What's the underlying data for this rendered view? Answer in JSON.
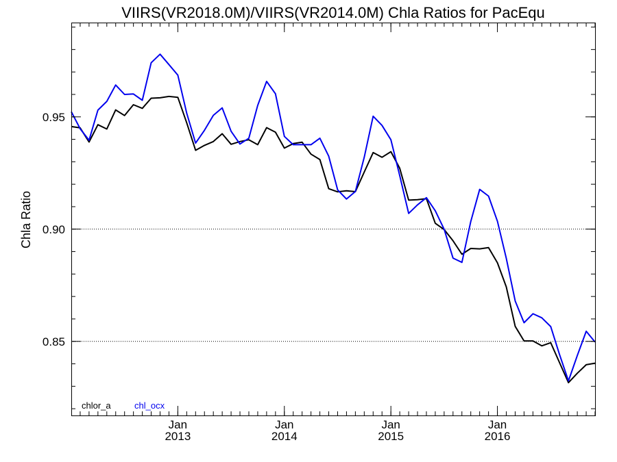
{
  "chart_data": {
    "type": "line",
    "title": "VIIRS(VR2018.0M)/VIIRS(VR2014.0M)  Chla Ratios for PacEqu",
    "xlabel": "",
    "ylabel": "Chla Ratio",
    "xlim": [
      "2012-01",
      "2016-12"
    ],
    "ylim": [
      0.817,
      0.992
    ],
    "y_ticks": [
      0.85,
      0.9,
      0.95
    ],
    "y_tick_labels": [
      "0.85",
      "0.90",
      "0.95"
    ],
    "x_ticks": [
      {
        "month_label": "Jan",
        "year_label": "2013",
        "x": "2013-01"
      },
      {
        "month_label": "Jan",
        "year_label": "2014",
        "x": "2014-01"
      },
      {
        "month_label": "Jan",
        "year_label": "2015",
        "x": "2015-01"
      },
      {
        "month_label": "Jan",
        "year_label": "2016",
        "x": "2016-01"
      }
    ],
    "reference_lines": [
      0.85,
      0.9
    ],
    "grid": false,
    "legend_position": "bottom-left",
    "x": [
      "2012-01",
      "2012-02",
      "2012-03",
      "2012-04",
      "2012-05",
      "2012-06",
      "2012-07",
      "2012-08",
      "2012-09",
      "2012-10",
      "2012-11",
      "2012-12",
      "2013-01",
      "2013-02",
      "2013-03",
      "2013-04",
      "2013-05",
      "2013-06",
      "2013-07",
      "2013-08",
      "2013-09",
      "2013-10",
      "2013-11",
      "2013-12",
      "2014-01",
      "2014-02",
      "2014-03",
      "2014-04",
      "2014-05",
      "2014-06",
      "2014-07",
      "2014-08",
      "2014-09",
      "2014-10",
      "2014-11",
      "2014-12",
      "2015-01",
      "2015-02",
      "2015-03",
      "2015-04",
      "2015-05",
      "2015-06",
      "2015-07",
      "2015-08",
      "2015-09",
      "2015-10",
      "2015-11",
      "2015-12",
      "2016-01",
      "2016-02",
      "2016-03",
      "2016-04",
      "2016-05",
      "2016-06",
      "2016-07",
      "2016-08",
      "2016-09",
      "2016-10",
      "2016-11",
      "2016-12"
    ],
    "series": [
      {
        "name": "chlor_a",
        "color": "#000000",
        "values": [
          0.9457,
          0.9451,
          0.9388,
          0.9465,
          0.9446,
          0.9531,
          0.9506,
          0.9554,
          0.9538,
          0.9583,
          0.9585,
          0.9591,
          0.9587,
          0.9474,
          0.9351,
          0.9373,
          0.939,
          0.9425,
          0.9378,
          0.939,
          0.9398,
          0.9376,
          0.9452,
          0.9432,
          0.9361,
          0.9381,
          0.9387,
          0.9334,
          0.931,
          0.918,
          0.9166,
          0.9171,
          0.9167,
          0.9254,
          0.9341,
          0.932,
          0.9345,
          0.9271,
          0.9129,
          0.9131,
          0.9136,
          0.9026,
          0.8998,
          0.8948,
          0.8888,
          0.8914,
          0.8912,
          0.8918,
          0.885,
          0.8743,
          0.8567,
          0.8502,
          0.8502,
          0.848,
          0.8494,
          0.8405,
          0.8316,
          0.8358,
          0.8396,
          0.8403
        ]
      },
      {
        "name": "chl_ocx",
        "color": "#0000ee",
        "values": [
          0.9523,
          0.9447,
          0.9396,
          0.953,
          0.9569,
          0.9642,
          0.96,
          0.9602,
          0.9574,
          0.9741,
          0.9779,
          0.9733,
          0.9686,
          0.9517,
          0.9383,
          0.944,
          0.9507,
          0.954,
          0.9436,
          0.9379,
          0.9405,
          0.9551,
          0.9658,
          0.9603,
          0.9413,
          0.9376,
          0.9376,
          0.9376,
          0.9405,
          0.9325,
          0.9175,
          0.9134,
          0.9168,
          0.932,
          0.9503,
          0.9462,
          0.9398,
          0.9238,
          0.907,
          0.9108,
          0.914,
          0.9082,
          0.8999,
          0.8871,
          0.8852,
          0.9034,
          0.9177,
          0.9147,
          0.9035,
          0.887,
          0.868,
          0.8583,
          0.8623,
          0.8605,
          0.8566,
          0.8441,
          0.8324,
          0.8437,
          0.8545,
          0.8497
        ]
      }
    ]
  }
}
